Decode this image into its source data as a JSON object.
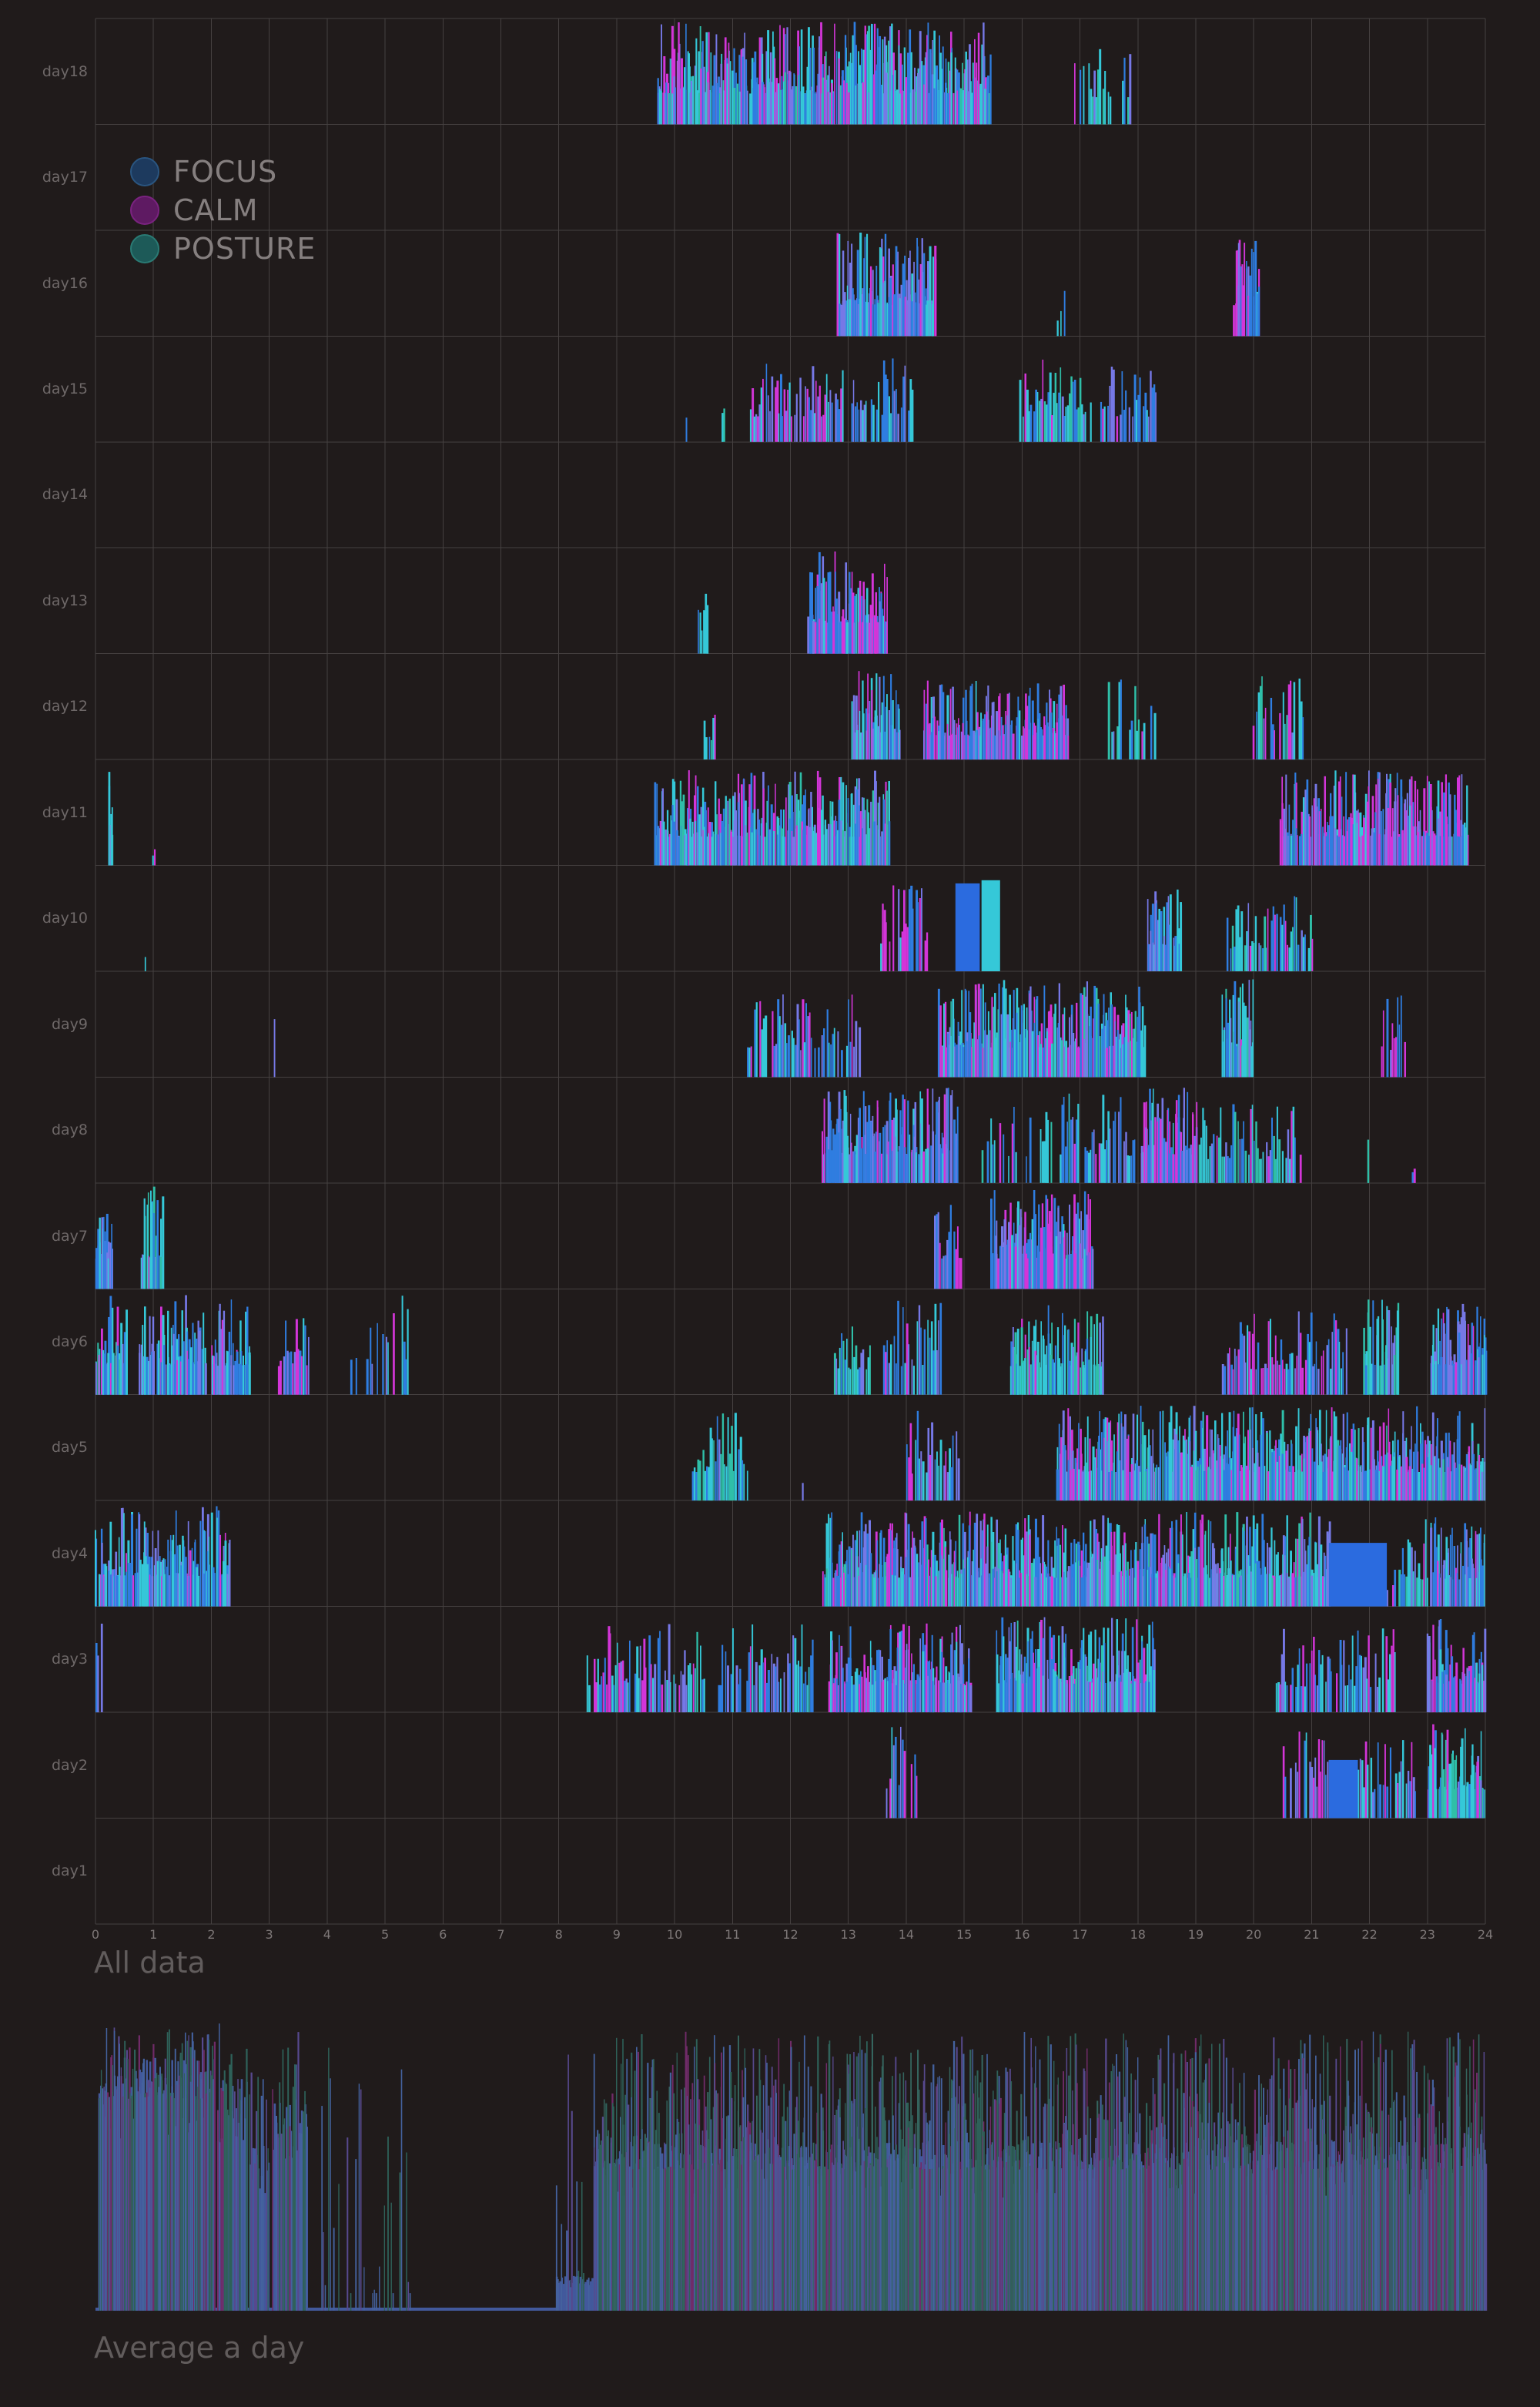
{
  "page": {
    "background": "#201B1B",
    "gridline_color": "#454040"
  },
  "titles": {
    "all_data": "All data",
    "average_day": "Average a day"
  },
  "legend": {
    "items": [
      {
        "label": "FOCUS",
        "color": "#1D3A5E",
        "ring": "#2A5580"
      },
      {
        "label": "CALM",
        "color": "#5E1A62",
        "ring": "#7A2380"
      },
      {
        "label": "POSTURE",
        "color": "#1D5A58",
        "ring": "#2A7A74"
      }
    ]
  },
  "axis": {
    "ticks": [
      "0",
      "1",
      "2",
      "3",
      "4",
      "5",
      "6",
      "7",
      "8",
      "9",
      "10",
      "11",
      "12",
      "13",
      "14",
      "15",
      "16",
      "17",
      "18",
      "19",
      "20",
      "21",
      "22",
      "23",
      "24"
    ]
  },
  "palette": {
    "top": {
      "cyan": "#35C8D8",
      "blue": "#2F7DE0",
      "peri": "#7678E6",
      "mag": "#D335D8",
      "teal": "#2FBFA8",
      "deep": "#2B6BDF",
      "sky": "#4D9BE8"
    },
    "avg": {
      "base": "#42599C",
      "ablue": "#44629E",
      "ateal": "#2E6159",
      "agreen": "#35655E",
      "apurp": "#57498E",
      "amag": "#702B68"
    }
  },
  "mixes": {
    "mixed": {
      "blue": 3,
      "cyan": 3,
      "mag": 2,
      "peri": 2,
      "teal": 1
    },
    "blueheavy": {
      "blue": 4,
      "peri": 3,
      "cyan": 2,
      "mag": 1
    },
    "cyanheavy": {
      "cyan": 4,
      "teal": 2,
      "blue": 2,
      "peri": 1,
      "mag": 1
    },
    "magheavy": {
      "mag": 4,
      "peri": 2,
      "blue": 2,
      "cyan": 2
    },
    "magblue": {
      "mag": 3,
      "blue": 3,
      "peri": 2,
      "cyan": 1
    },
    "cyanblue": {
      "cyan": 3,
      "blue": 3,
      "peri": 2,
      "mag": 1
    },
    "magpurp": {
      "mag": 3,
      "peri": 3,
      "blue": 2,
      "cyan": 1
    },
    "tealrise": {
      "teal": 3,
      "cyan": 3,
      "blue": 2,
      "peri": 1
    },
    "avg_left": {
      "ablue": 3,
      "ateal": 3,
      "apurp": 2,
      "amag": 1
    },
    "avg_stripe": {
      "ablue": 3,
      "ateal": 2,
      "apurp": 1
    },
    "avg_main": {
      "ateal": 3,
      "agreen": 2,
      "apurp": 2,
      "amag": 2,
      "ablue": 3
    }
  },
  "chart_data": [
    {
      "id": "all_data",
      "type": "bar",
      "title": "All data",
      "x_unit": "hour_of_day",
      "x_range": [
        0,
        24
      ],
      "seed": 7,
      "rows": [
        {
          "label": "day18",
          "segments": [
            [
              9.7,
              15.45,
              0.93,
              0.97,
              "mixed"
            ],
            [
              16.9,
              17.9,
              0.3,
              0.85,
              "cyanheavy"
            ]
          ]
        },
        {
          "label": "day17",
          "segments": []
        },
        {
          "label": "day16",
          "segments": [
            [
              12.8,
              14.5,
              0.95,
              0.98,
              "blueheavy"
            ],
            [
              16.6,
              16.75,
              0.3,
              0.45,
              "cyanheavy"
            ],
            [
              19.65,
              20.1,
              0.9,
              0.97,
              "magblue"
            ]
          ]
        },
        {
          "label": "day15",
          "segments": [
            [
              10.1,
              10.2,
              0.35,
              0.75,
              "cyanheavy"
            ],
            [
              10.75,
              10.85,
              0.3,
              0.5,
              "cyanheavy"
            ],
            [
              11.3,
              12.9,
              0.85,
              0.8,
              "magheavy"
            ],
            [
              13.05,
              14.1,
              0.8,
              0.85,
              "blueheavy"
            ],
            [
              15.95,
              17.2,
              0.88,
              0.8,
              "cyanheavy"
            ],
            [
              17.35,
              18.3,
              0.8,
              0.8,
              "blueheavy"
            ]
          ]
        },
        {
          "label": "day14",
          "segments": []
        },
        {
          "label": "day13",
          "segments": [
            [
              10.4,
              10.65,
              0.55,
              0.7,
              "cyanheavy"
            ],
            [
              12.3,
              13.65,
              0.92,
              0.97,
              "magblue"
            ]
          ]
        },
        {
          "label": "day12",
          "segments": [
            [
              10.5,
              10.75,
              0.5,
              0.6,
              "cyanheavy"
            ],
            [
              13.05,
              13.9,
              0.9,
              0.85,
              "blueheavy"
            ],
            [
              14.3,
              16.8,
              0.9,
              0.75,
              "magblue"
            ],
            [
              17.45,
              18.3,
              0.55,
              0.85,
              "cyanheavy"
            ],
            [
              19.95,
              20.9,
              0.5,
              0.8,
              "mixed"
            ]
          ]
        },
        {
          "label": "day11",
          "segments": [
            [
              0.22,
              0.3,
              0.9,
              0.92,
              "cyanheavy"
            ],
            [
              0.95,
              1.02,
              0.6,
              0.3,
              "magheavy"
            ],
            [
              9.65,
              13.7,
              0.95,
              0.9,
              "mixed"
            ],
            [
              20.45,
              23.7,
              0.95,
              0.9,
              "magblue"
            ]
          ]
        },
        {
          "label": "day10",
          "segments": [
            [
              0.85,
              0.9,
              0.5,
              0.25,
              "magheavy"
            ],
            [
              13.55,
              14.35,
              0.75,
              0.85,
              "magblue"
            ],
            [
              14.85,
              15.27,
              1,
              0.83,
              "deepsolid"
            ],
            [
              15.3,
              15.62,
              1,
              0.86,
              "cyansolid"
            ],
            [
              18.15,
              18.75,
              0.9,
              0.8,
              "blueheavy"
            ],
            [
              19.5,
              21.0,
              0.8,
              0.72,
              "cyanheavy"
            ],
            [
              21.85,
              21.92,
              0.5,
              0.6,
              "cyanheavy"
            ]
          ]
        },
        {
          "label": "day9",
          "segments": [
            [
              3.08,
              3.14,
              0.7,
              0.6,
              "blueheavy"
            ],
            [
              11.25,
              13.2,
              0.72,
              0.85,
              "blueheavy"
            ],
            [
              14.55,
              18.1,
              0.95,
              0.92,
              "mixed"
            ],
            [
              19.45,
              20.0,
              0.9,
              0.95,
              "cyanheavy"
            ],
            [
              22.2,
              22.6,
              0.75,
              0.8,
              "magheavy"
            ]
          ]
        },
        {
          "label": "day8",
          "segments": [
            [
              12.55,
              14.9,
              0.92,
              0.9,
              "blueheavy"
            ],
            [
              15.3,
              16.5,
              0.5,
              0.75,
              "mixed"
            ],
            [
              16.65,
              17.95,
              0.85,
              0.85,
              "blueheavy"
            ],
            [
              18.05,
              19.0,
              0.95,
              0.9,
              "magblue"
            ],
            [
              19.05,
              20.8,
              0.85,
              0.75,
              "cyanheavy"
            ],
            [
              21.55,
              21.62,
              0.5,
              0.7,
              "blueheavy"
            ],
            [
              21.9,
              21.97,
              0.5,
              0.6,
              "cyanheavy"
            ],
            [
              22.7,
              22.77,
              0.4,
              0.3,
              "mixed"
            ]
          ]
        },
        {
          "label": "day7",
          "segments": [
            [
              0.0,
              0.3,
              0.9,
              0.95,
              "blueheavy"
            ],
            [
              0.78,
              1.15,
              0.9,
              0.97,
              "cyanheavy"
            ],
            [
              14.48,
              14.95,
              0.85,
              0.95,
              "magheavy"
            ],
            [
              15.45,
              17.2,
              0.95,
              0.95,
              "magblue"
            ]
          ]
        },
        {
          "label": "day6",
          "segments": [
            [
              0.0,
              0.55,
              0.92,
              0.95,
              "mixed"
            ],
            [
              0.75,
              1.9,
              0.92,
              0.95,
              "cyanblue"
            ],
            [
              2.0,
              2.7,
              0.9,
              0.9,
              "blueheavy"
            ],
            [
              3.15,
              3.7,
              0.88,
              0.9,
              "magblue"
            ],
            [
              4.4,
              5.52,
              0.45,
              0.95,
              "blueheavy"
            ],
            [
              12.75,
              13.4,
              0.8,
              0.8,
              "cyanheavy"
            ],
            [
              13.6,
              14.6,
              0.88,
              0.9,
              "blueheavy"
            ],
            [
              15.8,
              17.4,
              0.9,
              0.85,
              "cyanheavy"
            ],
            [
              19.45,
              21.6,
              0.88,
              0.8,
              "magblue"
            ],
            [
              21.9,
              22.5,
              0.9,
              0.9,
              "cyanheavy"
            ],
            [
              23.05,
              24,
              0.92,
              0.92,
              "blueheavy"
            ]
          ]
        },
        {
          "label": "day5",
          "segments": [
            [
              10.3,
              11.25,
              0.88,
              0.9,
              "tealrise"
            ],
            [
              12.2,
              12.26,
              0.5,
              0.55,
              "blueheavy"
            ],
            [
              14.0,
              14.9,
              0.85,
              0.85,
              "magblue"
            ],
            [
              16.6,
              24,
              0.95,
              0.9,
              "mixed"
            ]
          ]
        },
        {
          "label": "day4",
          "segments": [
            [
              0.0,
              2.3,
              0.9,
              0.95,
              "cyanblue"
            ],
            [
              10.12,
              10.18,
              0.5,
              0.6,
              "cyanheavy"
            ],
            [
              12.55,
              21.3,
              0.93,
              0.9,
              "mixed"
            ],
            [
              21.3,
              22.3,
              1,
              0.6,
              "deepsolid"
            ],
            [
              22.3,
              22.45,
              0.3,
              0.5,
              "blueheavy"
            ],
            [
              22.5,
              23.0,
              0.88,
              0.85,
              "cyanheavy"
            ],
            [
              23.05,
              24,
              0.9,
              0.85,
              "blueheavy"
            ]
          ]
        },
        {
          "label": "day3",
          "segments": [
            [
              0.0,
              0.1,
              0.8,
              0.9,
              "blueheavy"
            ],
            [
              8.45,
              10.5,
              0.88,
              0.85,
              "mixed"
            ],
            [
              10.75,
              12.4,
              0.85,
              0.85,
              "blueheavy"
            ],
            [
              12.65,
              15.1,
              0.9,
              0.85,
              "magblue"
            ],
            [
              15.55,
              18.3,
              0.93,
              0.9,
              "mixed"
            ],
            [
              20.35,
              22.5,
              0.75,
              0.8,
              "cyanblue"
            ],
            [
              23.0,
              24,
              0.9,
              0.9,
              "magblue"
            ]
          ]
        },
        {
          "label": "day2",
          "segments": [
            [
              13.65,
              14.2,
              0.75,
              0.9,
              "magblue"
            ],
            [
              20.5,
              21.3,
              0.85,
              0.85,
              "magpurp"
            ],
            [
              21.3,
              21.8,
              1,
              0.55,
              "deepsolid"
            ],
            [
              21.8,
              22.8,
              0.8,
              0.8,
              "cyanblue"
            ],
            [
              23.0,
              24,
              0.9,
              0.9,
              "cyanheavy"
            ]
          ]
        },
        {
          "label": "day1",
          "segments": []
        }
      ]
    },
    {
      "id": "average_day",
      "type": "bar",
      "title": "Average a day",
      "x_unit": "hour_of_day",
      "x_range": [
        0,
        24
      ],
      "seed": 13,
      "baseline_strip_color": "#42599C",
      "segments": [
        [
          0.05,
          2.05,
          0.95,
          0.72,
          1.0,
          "avg_left"
        ],
        [
          2.1,
          2.6,
          0.9,
          0.68,
          0.98,
          "avg_left"
        ],
        [
          2.65,
          3.0,
          0.55,
          0.5,
          0.9,
          "avg_left"
        ],
        [
          3.05,
          3.65,
          0.85,
          0.6,
          0.98,
          "avg_left"
        ],
        [
          3.9,
          5.45,
          0.4,
          0.0,
          0.92,
          "avg_stripe"
        ],
        [
          5.5,
          7.95,
          0.0,
          0.0,
          0.0,
          "none"
        ],
        [
          7.95,
          8.6,
          0.5,
          0.1,
          0.95,
          "avg_stripe"
        ],
        [
          8.6,
          24,
          0.97,
          0.48,
          0.95,
          "avg_main"
        ]
      ]
    }
  ]
}
